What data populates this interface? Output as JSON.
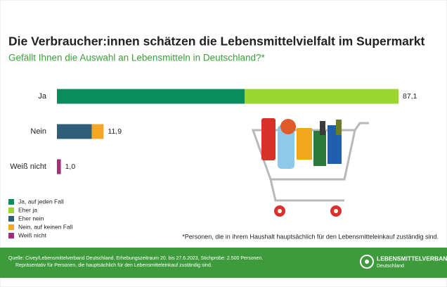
{
  "chart_data": {
    "type": "bar",
    "orientation": "horizontal",
    "stacked": true,
    "title": "Die Verbraucher:innen schätzen die Lebensmittelvielfalt im Supermarkt",
    "subtitle": "Gefällt Ihnen die Auswahl an Lebensmitteln in Deutschland?*",
    "categories": [
      "Ja",
      "Nein",
      "Weiß nicht"
    ],
    "series": [
      {
        "name": "Ja, auf jeden Fall",
        "color": "#0b8c5c",
        "values": [
          47.9,
          null,
          null
        ]
      },
      {
        "name": "Eher ja",
        "color": "#9ad62f",
        "values": [
          39.2,
          null,
          null
        ]
      },
      {
        "name": "Eher nein",
        "color": "#2f5e78",
        "values": [
          null,
          8.9,
          null
        ]
      },
      {
        "name": "Nein, auf keinen Fall",
        "color": "#f5a623",
        "values": [
          null,
          3.0,
          null
        ]
      },
      {
        "name": "Weiß nicht",
        "color": "#a0307a",
        "values": [
          null,
          null,
          1.0
        ]
      }
    ],
    "totals": [
      87.1,
      11.9,
      1.0
    ],
    "total_labels": [
      "87,1",
      "11,9",
      "1,0"
    ],
    "note": "*Personen, die in ihrem Haushalt hauptsächlich für den Lebensmitteleinkauf zuständig sind."
  },
  "footer": {
    "source": [
      "Quelle: Civey/Lebensmittelverband Deutschland. Erhebungszeitraum 20. bis 27.6.2023, Stichprobe: 2.500 Personen.",
      "Repräsentativ für Personen, die hauptsächlich für den Lebensmitteleinkauf zuständig sind."
    ],
    "logo": [
      "LEBENSMITTELVERBAND",
      "Deutschland"
    ]
  }
}
